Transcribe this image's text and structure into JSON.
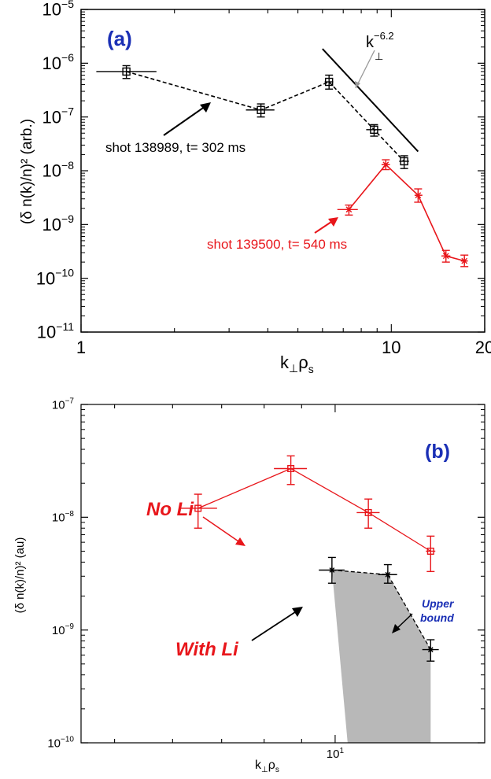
{
  "chart_data": [
    {
      "type": "scatter",
      "panel_label": "(a)",
      "xlabel": {
        "main": "k",
        "sub1": "⊥",
        "mid": "ρ",
        "sub2": "s"
      },
      "ylabel": "(δ n(k)/n)² (arb.)",
      "x_scale": "log",
      "y_scale": "log",
      "xlim": [
        1,
        20
      ],
      "ylim": [
        1e-11,
        1e-05
      ],
      "x_ticks": [
        {
          "v": 1,
          "label": "1"
        },
        {
          "v": 10,
          "label": "10"
        },
        {
          "v": 20,
          "label": "20"
        }
      ],
      "y_ticks": [
        {
          "v": 1e-05,
          "base": "10",
          "exp": "−5"
        },
        {
          "v": 1e-06,
          "base": "10",
          "exp": "−6"
        },
        {
          "v": 1e-07,
          "base": "10",
          "exp": "−7"
        },
        {
          "v": 1e-08,
          "base": "10",
          "exp": "−8"
        },
        {
          "v": 1e-09,
          "base": "10",
          "exp": "−9"
        },
        {
          "v": 1e-10,
          "base": "10",
          "exp": "−10"
        },
        {
          "v": 1e-11,
          "base": "10",
          "exp": "−11"
        }
      ],
      "series": [
        {
          "name": "shot 138989, t= 302 ms",
          "color": "#000000",
          "line": "dashed",
          "marker": "square",
          "points": [
            {
              "x": 1.4,
              "y": 7e-07,
              "ylo": 5.2e-07,
              "yhi": 9e-07,
              "xlo": 1.12,
              "xhi": 1.75
            },
            {
              "x": 3.8,
              "y": 1.35e-07,
              "ylo": 1e-07,
              "yhi": 1.75e-07,
              "xlo": 3.4,
              "xhi": 4.2
            },
            {
              "x": 6.3,
              "y": 4.5e-07,
              "ylo": 3.3e-07,
              "yhi": 6e-07,
              "xlo": 6.1,
              "xhi": 6.5
            },
            {
              "x": 8.8,
              "y": 5.8e-08,
              "ylo": 4.4e-08,
              "yhi": 7.2e-08,
              "xlo": 8.3,
              "xhi": 9.3
            },
            {
              "x": 11,
              "y": 1.5e-08,
              "ylo": 1.1e-08,
              "yhi": 1.9e-08,
              "xlo": 10.6,
              "xhi": 11.4
            }
          ]
        },
        {
          "name": "shot 139500, t= 540 ms",
          "color": "#e8161b",
          "line": "solid",
          "marker": "star",
          "points": [
            {
              "x": 7.3,
              "y": 1.9e-09,
              "ylo": 1.5e-09,
              "yhi": 2.3e-09,
              "xlo": 6.7,
              "xhi": 7.8
            },
            {
              "x": 9.6,
              "y": 1.3e-08,
              "ylo": 1.05e-08,
              "yhi": 1.6e-08,
              "xlo": 9.3,
              "xhi": 9.9
            },
            {
              "x": 12.2,
              "y": 3.5e-09,
              "ylo": 2.6e-09,
              "yhi": 4.6e-09,
              "xlo": 11.9,
              "xhi": 12.6
            },
            {
              "x": 15,
              "y": 2.6e-10,
              "ylo": 2e-10,
              "yhi": 3.3e-10,
              "xlo": 14.5,
              "xhi": 15.5
            },
            {
              "x": 17.2,
              "y": 2.1e-10,
              "ylo": 1.65e-10,
              "yhi": 2.7e-10,
              "xlo": 16.8,
              "xhi": 17.6
            }
          ]
        }
      ],
      "powerlaw": {
        "label_base": "k",
        "label_sub": "⊥",
        "label_exp": "−6.2",
        "exponent": -6.2,
        "x1": 6.0,
        "y1": 1.85e-06,
        "x2": 12.2,
        "y2": 2.28e-08
      },
      "annotations": [
        {
          "text": "(a)",
          "color": "#1a2fb5"
        },
        {
          "text": "shot 138989, t= 302 ms",
          "color": "#000000"
        },
        {
          "text": "shot 139500, t= 540 ms",
          "color": "#e8161b"
        }
      ]
    },
    {
      "type": "scatter",
      "panel_label": "(b)",
      "xlabel": {
        "main": "k",
        "sub1": "⊥",
        "mid": "ρ",
        "sub2": "s"
      },
      "ylabel": "(δ n(k)/n)² (au)",
      "x_scale": "log",
      "y_scale": "log",
      "xlim": [
        4.5,
        16
      ],
      "ylim": [
        1e-10,
        1e-07
      ],
      "x_ticks": [
        {
          "v": 10,
          "base": "10",
          "exp": "1"
        }
      ],
      "y_ticks": [
        {
          "v": 1e-07,
          "base": "10",
          "exp": "−7"
        },
        {
          "v": 1e-08,
          "base": "10",
          "exp": "−8"
        },
        {
          "v": 1e-09,
          "base": "10",
          "exp": "−9"
        },
        {
          "v": 1e-10,
          "base": "10",
          "exp": "−10"
        }
      ],
      "series": [
        {
          "name": "No Li",
          "color": "#e8161b",
          "line": "solid",
          "marker": "square",
          "points": [
            {
              "x": 6.5,
              "y": 1.2e-08,
              "ylo": 8e-09,
              "yhi": 1.6e-08,
              "xlo": 6.15,
              "xhi": 6.9
            },
            {
              "x": 8.7,
              "y": 2.7e-08,
              "ylo": 1.95e-08,
              "yhi": 3.5e-08,
              "xlo": 8.25,
              "xhi": 9.15
            },
            {
              "x": 11.1,
              "y": 1.1e-08,
              "ylo": 8e-09,
              "yhi": 1.45e-08,
              "xlo": 10.7,
              "xhi": 11.5
            },
            {
              "x": 13.5,
              "y": 5e-09,
              "ylo": 3.3e-09,
              "yhi": 6.8e-09,
              "xlo": 13.3,
              "xhi": 13.7
            }
          ]
        },
        {
          "name": "With Li",
          "color": "#000000",
          "line": "dashed",
          "marker": "star",
          "points": [
            {
              "x": 9.9,
              "y": 3.4e-09,
              "ylo": 2.6e-09,
              "yhi": 4.4e-09,
              "xlo": 9.5,
              "xhi": 10.3
            },
            {
              "x": 11.8,
              "y": 3.1e-09,
              "ylo": 2.6e-09,
              "yhi": 3.8e-09,
              "xlo": 11.45,
              "xhi": 12.15
            },
            {
              "x": 13.5,
              "y": 6.7e-10,
              "ylo": 5.3e-10,
              "yhi": 8.2e-10,
              "xlo": 13.15,
              "xhi": 13.85
            }
          ]
        }
      ],
      "shaded_region": {
        "color": "#b8b8b8",
        "polygon": [
          {
            "x": 9.9,
            "y": 3.4e-09
          },
          {
            "x": 11.8,
            "y": 3.1e-09
          },
          {
            "x": 13.5,
            "y": 6.7e-10
          },
          {
            "x": 13.5,
            "y": 1e-10
          },
          {
            "x": 10.4,
            "y": 1e-10
          }
        ]
      },
      "annotations": [
        {
          "text": "(b)",
          "color": "#1a2fb5"
        },
        {
          "text": "No Li",
          "color": "#e8161b"
        },
        {
          "text": "With Li",
          "color": "#e8161b"
        },
        {
          "text": "Upper",
          "color": "#1a2fb5"
        },
        {
          "text": "bound",
          "color": "#1a2fb5"
        }
      ]
    }
  ]
}
